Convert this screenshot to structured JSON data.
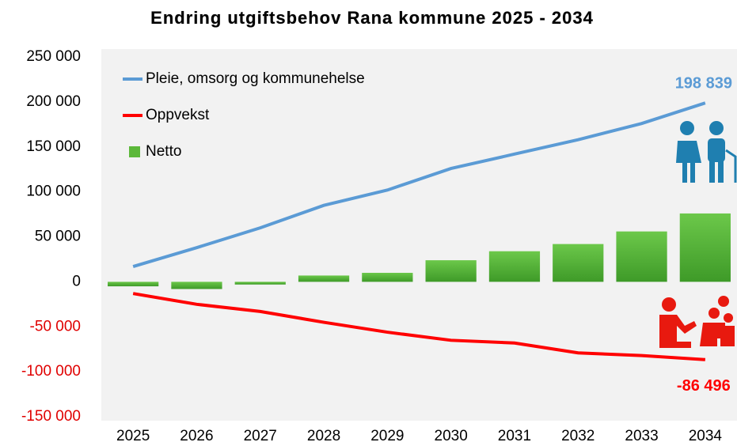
{
  "chart_data": {
    "type": "line_bar",
    "title": "Endring utgiftsbehov Rana kommune 2025 - 2034",
    "categories": [
      "2025",
      "2026",
      "2027",
      "2028",
      "2029",
      "2030",
      "2031",
      "2032",
      "2033",
      "2034"
    ],
    "series": [
      {
        "name": "Pleie, omsorg og kommunehelse",
        "type": "line",
        "color": "#5b9bd5",
        "values": [
          17000,
          38000,
          60000,
          85000,
          102000,
          126000,
          142000,
          158000,
          176000,
          198839
        ],
        "value_labels": [
          null,
          null,
          null,
          null,
          null,
          null,
          null,
          null,
          null,
          "198 839"
        ]
      },
      {
        "name": "Oppvekst",
        "type": "line",
        "color": "#ff0000",
        "values": [
          -13000,
          -25000,
          -33000,
          -45000,
          -56000,
          -65000,
          -68000,
          -79000,
          -82000,
          -86496
        ],
        "value_labels": [
          null,
          null,
          null,
          null,
          null,
          null,
          null,
          null,
          null,
          "-86 496"
        ]
      },
      {
        "name": "Netto",
        "type": "bar",
        "color": "#5cb83a",
        "values": [
          -5000,
          -8000,
          -3000,
          7000,
          10000,
          24000,
          34000,
          42000,
          56000,
          76000
        ]
      }
    ],
    "ylim": [
      -150000,
      250000
    ],
    "yticks": [
      {
        "value": -150000,
        "label": "-150 000"
      },
      {
        "value": -100000,
        "label": "-100 000"
      },
      {
        "value": -50000,
        "label": "-50 000"
      },
      0,
      {
        "value": 50000,
        "label": "50 000"
      },
      {
        "value": 100000,
        "label": "100 000"
      },
      {
        "value": 150000,
        "label": "150 000"
      },
      {
        "value": 200000,
        "label": "200 000"
      },
      {
        "value": 250000,
        "label": "250 000"
      }
    ],
    "legend": "upper left"
  }
}
